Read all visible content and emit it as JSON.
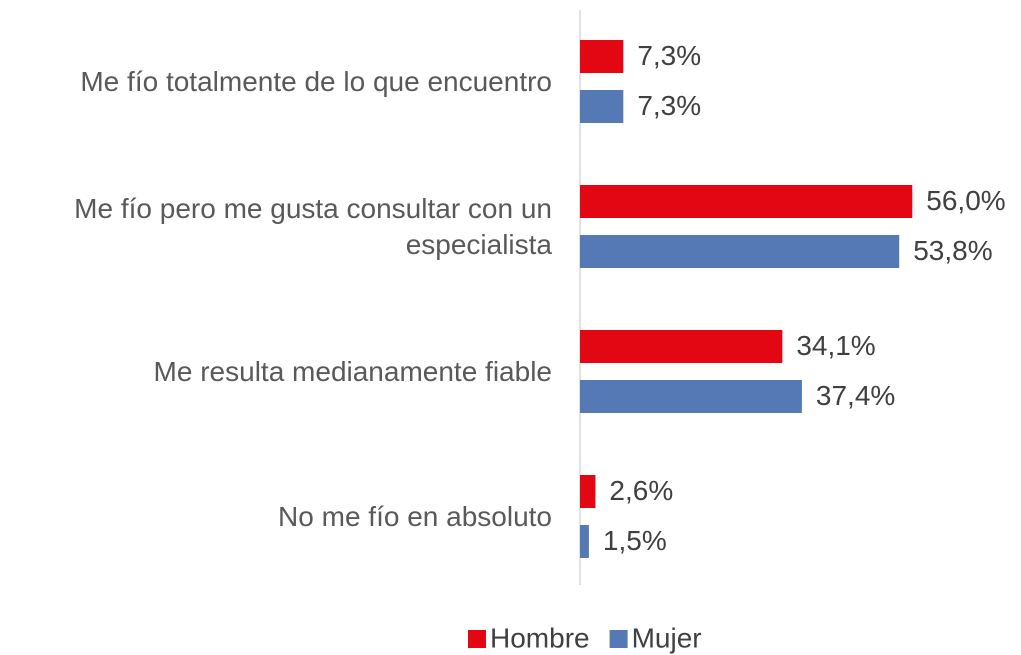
{
  "chart_data": {
    "type": "barh",
    "categories": [
      "Me fío totalmente de lo que encuentro",
      "Me fío pero me gusta consultar con un especialista",
      "Me resulta medianamente fiable",
      "No me fío en absoluto"
    ],
    "series": [
      {
        "name": "Hombre",
        "color": "#e30613",
        "values": [
          7.3,
          56.0,
          34.1,
          2.6
        ],
        "value_labels": [
          "7,3%",
          "56,0%",
          "34,1%",
          "2,6%"
        ]
      },
      {
        "name": "Mujer",
        "color": "#5579b4",
        "values": [
          7.3,
          53.8,
          37.4,
          1.5
        ],
        "value_labels": [
          "7,3%",
          "53,8%",
          "37,4%",
          "1,5%"
        ]
      }
    ],
    "xlim": [
      0,
      60
    ],
    "legend": "bottom"
  }
}
